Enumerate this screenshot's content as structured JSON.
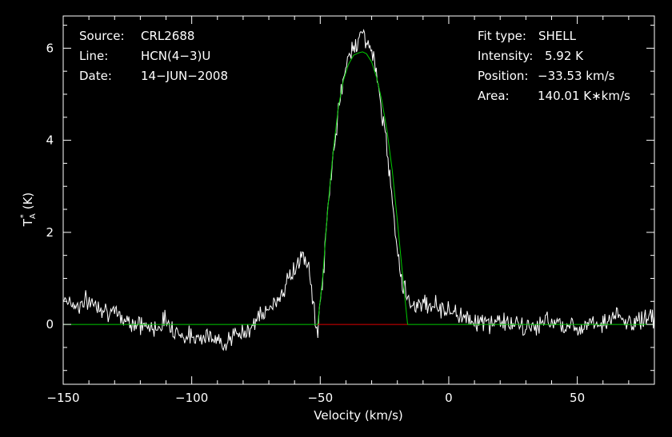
{
  "chart_data": {
    "type": "line",
    "title": "",
    "xlabel": "Velocity (km/s)",
    "ylabel_main": "T",
    "ylabel_sup": "*",
    "ylabel_sub": "A",
    "ylabel_unit": "(K)",
    "xlim": [
      -150,
      80
    ],
    "ylim": [
      -1.3,
      6.7
    ],
    "x_ticks": [
      -150,
      -100,
      -50,
      0,
      50
    ],
    "x_tick_labels": [
      "−150",
      "−100",
      "−50",
      "0",
      "50"
    ],
    "y_ticks": [
      0,
      2,
      4,
      6
    ],
    "y_tick_labels": [
      "0",
      "2",
      "4",
      "6"
    ],
    "grid": false,
    "colors": {
      "background": "#000000",
      "frame": "#ffffff",
      "spectrum": "#ffffff",
      "fit": "#00cc00",
      "fit_baseline": "#dd0000"
    },
    "series": [
      {
        "role": "spectrum",
        "x": [
          -150,
          -145,
          -140,
          -135,
          -130,
          -125,
          -120,
          -115,
          -110,
          -105,
          -100,
          -95,
          -90,
          -85,
          -80,
          -75,
          -70,
          -66,
          -63,
          -60,
          -57,
          -55,
          -53,
          -51,
          -49,
          -47,
          -45,
          -43,
          -41,
          -39,
          -37,
          -35,
          -33,
          -31,
          -29,
          -27,
          -25,
          -23,
          -21,
          -19,
          -17,
          -15,
          -13,
          -10,
          -5,
          0,
          5,
          10,
          15,
          20,
          25,
          30,
          35,
          40,
          45,
          50,
          55,
          60,
          65,
          70,
          75,
          80
        ],
        "y": [
          0.6,
          0.4,
          0.5,
          0.4,
          0.2,
          0.1,
          0.0,
          -0.1,
          0.1,
          -0.2,
          -0.3,
          -0.2,
          -0.4,
          -0.3,
          -0.2,
          0.1,
          0.3,
          0.6,
          0.9,
          1.2,
          1.5,
          1.3,
          0.6,
          -0.2,
          1.0,
          2.5,
          3.7,
          4.6,
          5.3,
          5.8,
          6.1,
          6.2,
          6.3,
          6.1,
          5.7,
          5.0,
          4.2,
          3.3,
          2.2,
          1.2,
          0.7,
          0.5,
          0.4,
          0.5,
          0.4,
          0.3,
          0.2,
          0.1,
          0.0,
          0.1,
          0.0,
          -0.1,
          0.0,
          0.1,
          0.0,
          -0.1,
          0.1,
          0.0,
          0.2,
          0.0,
          0.1,
          0.2
        ]
      },
      {
        "role": "fit",
        "x": [
          -150,
          -51,
          -49,
          -47,
          -45,
          -43,
          -41,
          -39,
          -37,
          -35,
          -33.53,
          -32,
          -30,
          -28,
          -26,
          -24,
          -22,
          -20,
          -18,
          -16,
          80
        ],
        "y": [
          0,
          0,
          1.05,
          2.55,
          3.75,
          4.7,
          5.3,
          5.65,
          5.85,
          5.9,
          5.92,
          5.88,
          5.7,
          5.35,
          4.85,
          4.2,
          3.35,
          2.25,
          1.1,
          0,
          0
        ]
      },
      {
        "role": "fit-baseline",
        "x": [
          -51,
          -16
        ],
        "y": [
          0,
          0
        ]
      }
    ],
    "annotations_left": [
      {
        "label": "Source:",
        "value": "CRL2688"
      },
      {
        "label": "Line:",
        "value": "HCN(4−3)U"
      },
      {
        "label": "Date:",
        "value": "14−JUN−2008"
      }
    ],
    "annotations_right": [
      {
        "label": "Fit type:",
        "value": "SHELL"
      },
      {
        "label": "Intensity:",
        "value": "5.92 K"
      },
      {
        "label": "Position:",
        "value": "−33.53 km/s"
      },
      {
        "label": "Area:",
        "value": "140.01 K∗km/s"
      }
    ]
  }
}
